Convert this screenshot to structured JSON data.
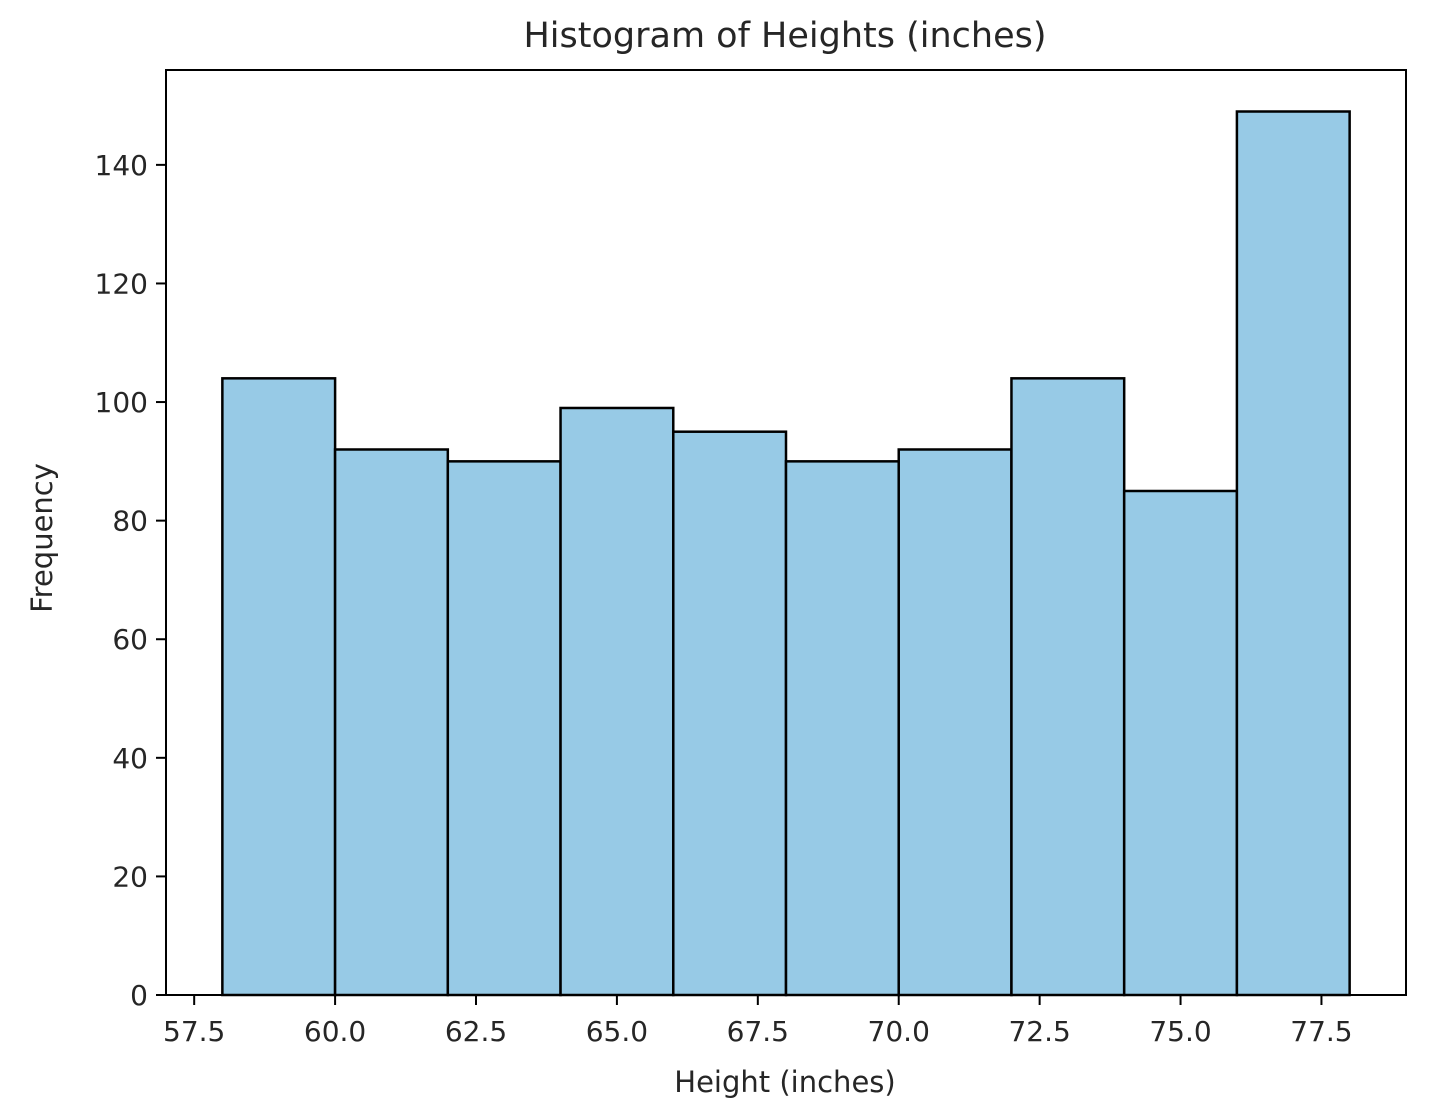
{
  "chart_data": {
    "type": "bar",
    "title": "Histogram of Heights (inches)",
    "xlabel": "Height (inches)",
    "ylabel": "Frequency",
    "bin_edges": [
      58,
      60,
      62,
      64,
      66,
      68,
      70,
      72,
      74,
      76,
      78
    ],
    "values": [
      104,
      92,
      90,
      99,
      95,
      90,
      92,
      104,
      85,
      149
    ],
    "xlim": [
      57.0,
      79.0
    ],
    "ylim": [
      0,
      156
    ],
    "xticks": [
      57.5,
      60.0,
      62.5,
      65.0,
      67.5,
      70.0,
      72.5,
      75.0,
      77.5
    ],
    "xtick_labels": [
      "57.5",
      "60.0",
      "62.5",
      "65.0",
      "67.5",
      "70.0",
      "72.5",
      "75.0",
      "77.5"
    ],
    "yticks": [
      0,
      20,
      40,
      60,
      80,
      100,
      120,
      140
    ],
    "ytick_labels": [
      "0",
      "20",
      "40",
      "60",
      "80",
      "100",
      "120",
      "140"
    ],
    "bar_color": "#97cae6",
    "edge_color": "#000000",
    "grid": false,
    "legend": "none"
  }
}
